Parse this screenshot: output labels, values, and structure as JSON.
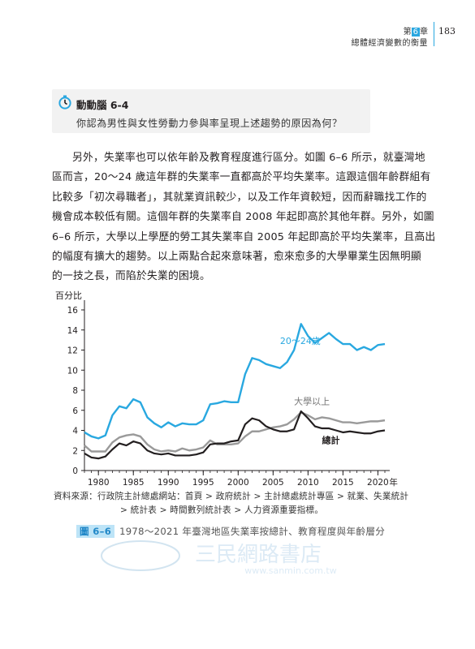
{
  "header": {
    "chapter_prefix": "第",
    "chapter_num": "6",
    "chapter_suffix": "章",
    "chapter_subtitle": "總體經濟變數的衡量",
    "page_number": "183"
  },
  "think_box": {
    "title": "動動腦 6-4",
    "question": "你認為男性與女性勞動力參與率呈現上述趨勢的原因為何？"
  },
  "paragraph_lines": [
    "另外，失業率也可以依年齡及教育程度進行區分。如圖 6–6 所示，就臺灣地",
    "區而言，20～24 歲這年群的失業率一直都高於平均失業率。這跟這個年齡群組有",
    "比較多「初次尋職者」，其就業資訊較少，以及工作年資較短，因而辭職找工作的",
    "機會成本較低有關。這個年群的失業率自 2008 年起即高於其他年群。另外，如圖",
    "6–6 所示，大學以上學歷的勞工其失業率自 2005 年起即高於平均失業率，且高出",
    "的幅度有擴大的趨勢。以上兩點合起來意味著，愈來愈多的大學畢業生因無明顯",
    "的一技之長，而陷於失業的困境。"
  ],
  "source": {
    "line1": "資料來源：行政院主計總處網站：首頁 > 政府統計 > 主計總處統計專區 > 就業、失業統計",
    "line2": "> 統計表 > 時間數列統計表 > 人力資源重要指標。"
  },
  "caption": {
    "label": "圖 6–6",
    "text": "1978～2021 年臺灣地區失業率按總計、教育程度與年齡層分"
  },
  "watermark": {
    "text": "三民網路書店",
    "url": "www.sanmin.com.tw"
  },
  "chart_data": {
    "type": "line",
    "ylabel": "百分比",
    "xlabel_unit": "年",
    "ylim": [
      0,
      16
    ],
    "yticks": [
      0,
      2,
      4,
      6,
      8,
      10,
      12,
      14,
      16
    ],
    "xlim": [
      1978,
      2021
    ],
    "xticks": [
      1980,
      1985,
      1990,
      1995,
      2000,
      2005,
      2010,
      2015,
      2020
    ],
    "xtick_labels": [
      "1980",
      "1985",
      "1990",
      "1995",
      "2000",
      "2005",
      "2010",
      "2015",
      "2020"
    ],
    "x": [
      1978,
      1979,
      1980,
      1981,
      1982,
      1983,
      1984,
      1985,
      1986,
      1987,
      1988,
      1989,
      1990,
      1991,
      1992,
      1993,
      1994,
      1995,
      1996,
      1997,
      1998,
      1999,
      2000,
      2001,
      2002,
      2003,
      2004,
      2005,
      2006,
      2007,
      2008,
      2009,
      2010,
      2011,
      2012,
      2013,
      2014,
      2015,
      2016,
      2017,
      2018,
      2019,
      2020,
      2021
    ],
    "series": [
      {
        "name": "20～24歲",
        "color": "#29a8e0",
        "label_pos": "upper-right",
        "values": [
          3.8,
          3.4,
          3.2,
          3.5,
          5.5,
          6.4,
          6.2,
          7.1,
          6.8,
          5.3,
          4.7,
          4.3,
          4.8,
          4.4,
          4.7,
          4.6,
          4.6,
          5.0,
          6.6,
          6.7,
          6.9,
          6.8,
          6.8,
          9.6,
          11.2,
          11.0,
          10.6,
          10.4,
          10.2,
          10.8,
          12.0,
          14.6,
          13.4,
          12.7,
          13.2,
          13.7,
          13.1,
          12.6,
          12.6,
          12.0,
          12.3,
          12.0,
          12.5,
          12.6
        ]
      },
      {
        "name": "大學以上",
        "color": "#9a9a9a",
        "label_pos": "middle-right",
        "values": [
          2.5,
          1.9,
          1.9,
          1.9,
          2.8,
          3.3,
          3.5,
          3.6,
          3.4,
          2.6,
          2.1,
          1.9,
          2.0,
          1.9,
          2.2,
          2.0,
          2.1,
          2.3,
          3.0,
          2.6,
          2.6,
          2.6,
          2.7,
          3.4,
          3.9,
          3.9,
          4.1,
          4.3,
          4.4,
          4.6,
          5.1,
          5.8,
          5.5,
          5.1,
          5.3,
          5.2,
          5.0,
          4.8,
          4.8,
          4.7,
          4.8,
          4.9,
          4.9,
          5.0
        ]
      },
      {
        "name": "總計",
        "color": "#231f20",
        "label_pos": "lower-right",
        "values": [
          1.7,
          1.3,
          1.2,
          1.4,
          2.1,
          2.7,
          2.5,
          2.9,
          2.7,
          2.0,
          1.7,
          1.6,
          1.7,
          1.5,
          1.5,
          1.5,
          1.6,
          1.8,
          2.6,
          2.7,
          2.7,
          2.9,
          3.0,
          4.6,
          5.2,
          5.0,
          4.4,
          4.1,
          3.9,
          3.9,
          4.1,
          5.9,
          5.2,
          4.4,
          4.2,
          4.2,
          4.0,
          3.8,
          3.9,
          3.8,
          3.7,
          3.7,
          3.9,
          4.0
        ]
      }
    ],
    "grid": false,
    "legend": "inline labels"
  }
}
